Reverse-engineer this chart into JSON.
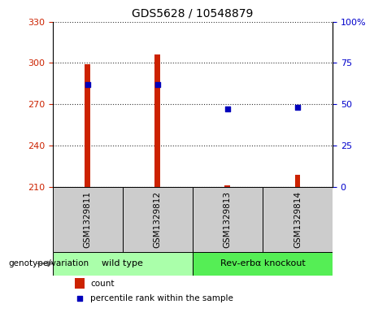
{
  "title": "GDS5628 / 10548879",
  "samples": [
    "GSM1329811",
    "GSM1329812",
    "GSM1329813",
    "GSM1329814"
  ],
  "count_values": [
    299,
    306,
    211,
    219
  ],
  "percentile_pct": [
    62,
    62,
    47,
    48
  ],
  "ylim_left": [
    210,
    330
  ],
  "ylim_right": [
    0,
    100
  ],
  "yticks_left": [
    210,
    240,
    270,
    300,
    330
  ],
  "yticks_right": [
    0,
    25,
    50,
    75,
    100
  ],
  "bar_color": "#cc2200",
  "dot_color": "#0000bb",
  "groups": [
    {
      "label": "wild type",
      "samples": [
        0,
        1
      ],
      "color": "#aaffaa"
    },
    {
      "label": "Rev-erbα knockout",
      "samples": [
        2,
        3
      ],
      "color": "#55ee55"
    }
  ],
  "genotype_label": "genotype/variation",
  "legend_count": "count",
  "legend_pct": "percentile rank within the sample",
  "bar_width": 0.08,
  "label_color_left": "#cc2200",
  "label_color_right": "#0000cc",
  "title_fontsize": 10,
  "tick_fontsize": 8,
  "sample_label_fontsize": 7.5,
  "group_label_fontsize": 8,
  "legend_fontsize": 7.5
}
